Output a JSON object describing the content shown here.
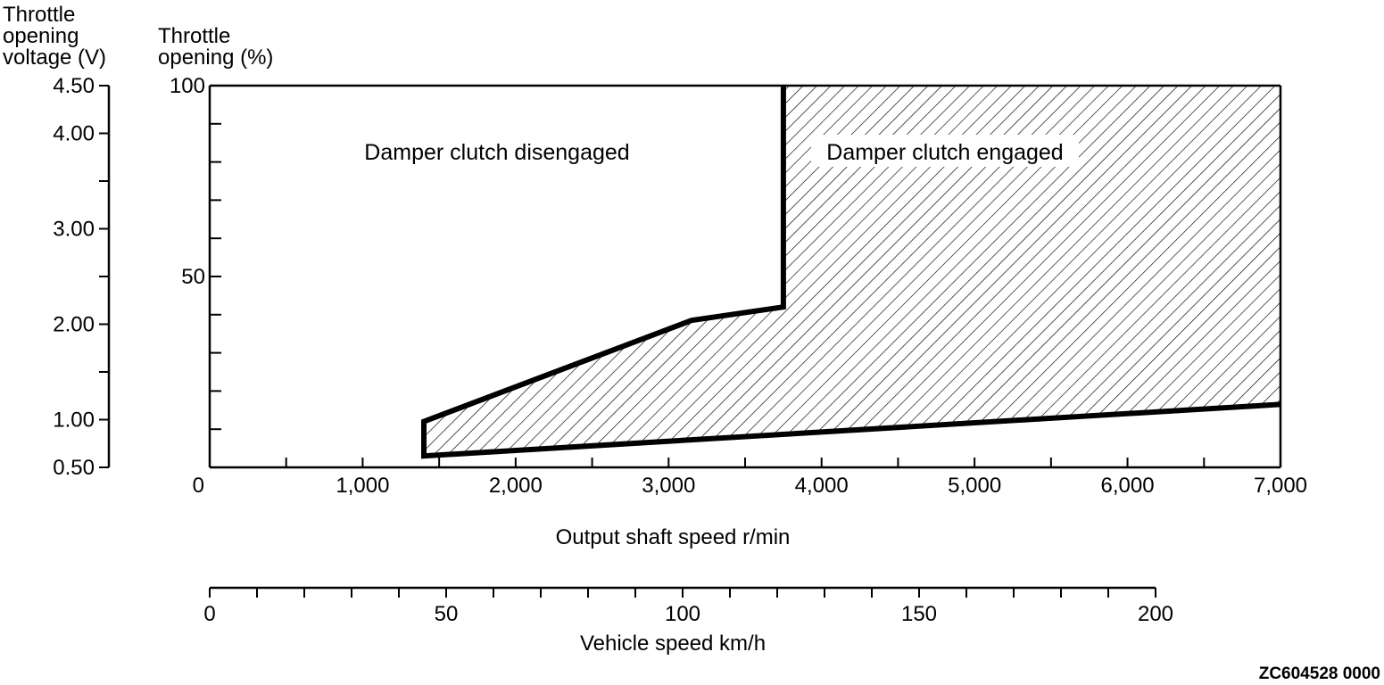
{
  "figure_id": "ZC604528 0000",
  "chart_data": {
    "type": "area",
    "title": "",
    "xlabel": "Output shaft speed r/min",
    "ylabel": "Throttle opening (%)",
    "secondary_ylabel": "Throttle opening voltage (V)",
    "secondary_xlabel": "Vehicle speed km/h",
    "xlim": [
      0,
      7000
    ],
    "ylim": [
      0,
      100
    ],
    "secondary_xlim": [
      0,
      200
    ],
    "secondary_ylim": [
      0.5,
      4.5
    ],
    "x_ticks": [
      0,
      1000,
      2000,
      3000,
      4000,
      5000,
      6000,
      7000
    ],
    "x_tick_labels": [
      "0",
      "1,000",
      "2,000",
      "3,000",
      "4,000",
      "5,000",
      "6,000",
      "7,000"
    ],
    "y_ticks": [
      50,
      100
    ],
    "y_tick_labels": [
      "50",
      "100"
    ],
    "secondary_x_ticks": [
      0,
      50,
      100,
      150,
      200
    ],
    "secondary_x_tick_labels": [
      "0",
      "50",
      "100",
      "150",
      "200"
    ],
    "secondary_y_ticks": [
      0.5,
      1.0,
      2.0,
      3.0,
      4.0,
      4.5
    ],
    "secondary_y_tick_labels": [
      "0.50",
      "1.00",
      "2.00",
      "3.00",
      "4.00",
      "4.50"
    ],
    "grid": false,
    "regions": [
      {
        "label": "Damper clutch engaged",
        "fill": "hatched",
        "boundary": [
          [
            1400,
            3
          ],
          [
            1400,
            12
          ],
          [
            3150,
            38.5
          ],
          [
            3750,
            42
          ],
          [
            3750,
            100
          ],
          [
            7000,
            100
          ],
          [
            7000,
            16.5
          ]
        ]
      },
      {
        "label": "Damper clutch disengaged",
        "fill": "none"
      }
    ]
  }
}
